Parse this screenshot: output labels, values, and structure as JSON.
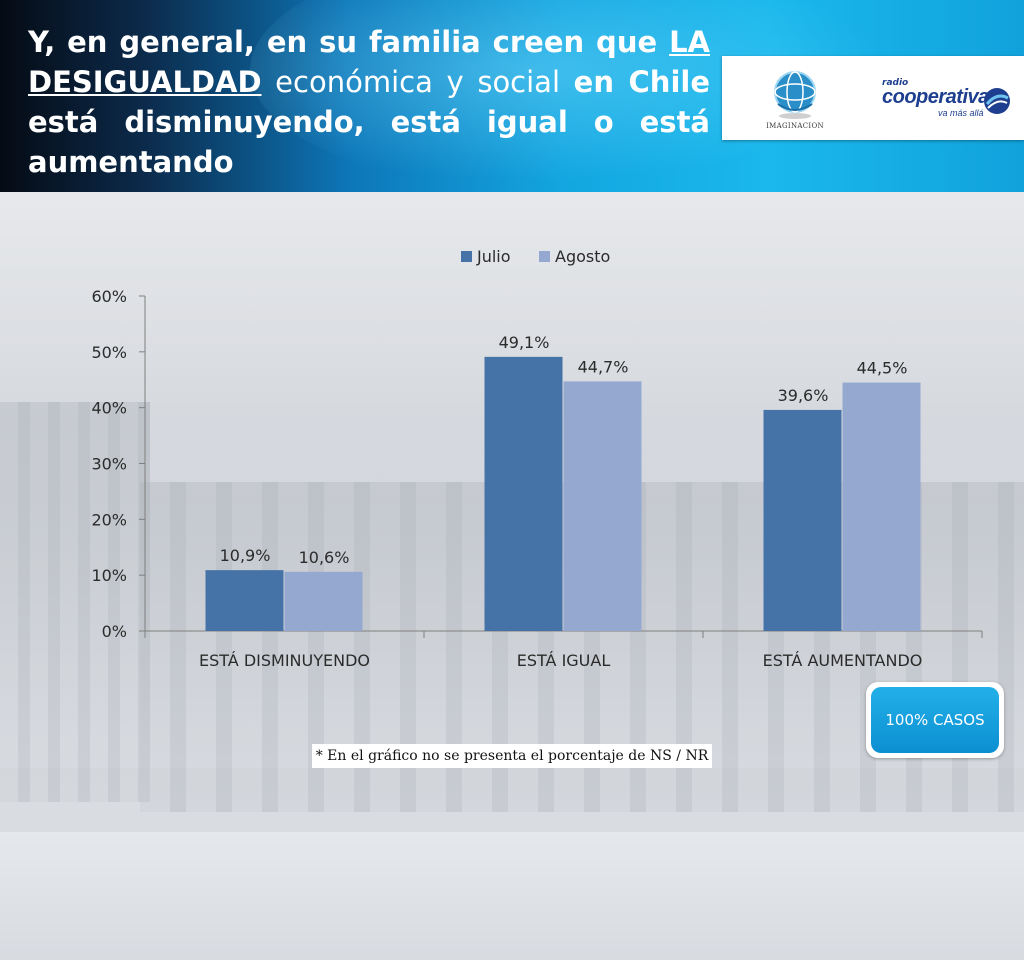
{
  "header": {
    "title_parts": [
      "Y, en general, en su familia creen que ",
      "LA DESIGUALDAD",
      " económica y social ",
      "en Chile está disminuyendo, está igual o está aumentando"
    ]
  },
  "logos": {
    "imaginacion_text": "IMAGINACION",
    "cooperativa_small": "radio",
    "cooperativa_main": "cooperativa",
    "cooperativa_tag": "va más allá"
  },
  "chart_data": {
    "type": "bar",
    "categories": [
      "ESTÁ DISMINUYENDO",
      "ESTÁ IGUAL",
      "ESTÁ AUMENTANDO"
    ],
    "series": [
      {
        "name": "Julio",
        "values": [
          10.9,
          49.1,
          39.6
        ],
        "labels": [
          "10,9%",
          "49,1%",
          "39,6%"
        ],
        "color": "#4573a7"
      },
      {
        "name": "Agosto",
        "values": [
          10.6,
          44.7,
          44.5
        ],
        "labels": [
          "10,6%",
          "44,7%",
          "44,5%"
        ],
        "color": "#94a8d0"
      }
    ],
    "ylim": [
      0,
      60
    ],
    "yticks": [
      0,
      10,
      20,
      30,
      40,
      50,
      60
    ],
    "ytick_labels": [
      "0%",
      "10%",
      "20%",
      "30%",
      "40%",
      "50%",
      "60%"
    ],
    "legend_position": "top",
    "grid": false
  },
  "badge": {
    "label": "100% CASOS"
  },
  "footnote": "* En el gráfico no se presenta el porcentaje de NS / NR"
}
